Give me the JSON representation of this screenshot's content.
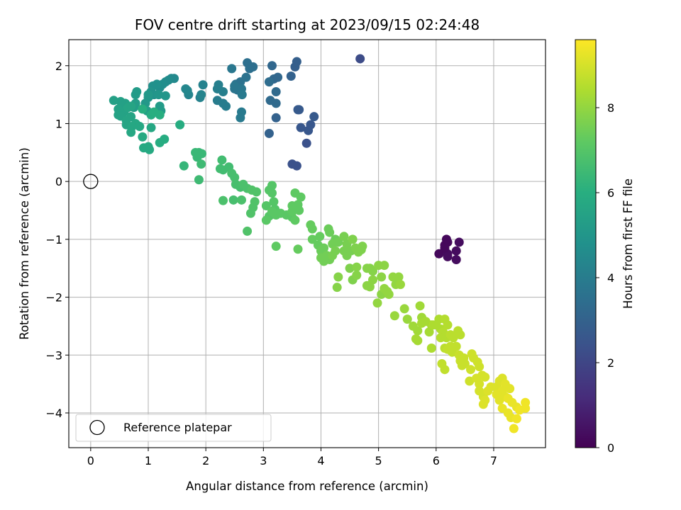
{
  "chart_data": {
    "type": "scatter",
    "title": "FOV centre drift starting at 2023/09/15 02:24:48",
    "xlabel": "Angular distance from reference (arcmin)",
    "ylabel": "Rotation from reference (arcmin)",
    "xlim": [
      -0.38,
      7.9
    ],
    "ylim": [
      -4.6,
      2.45
    ],
    "xticks": [
      0,
      1,
      2,
      3,
      4,
      5,
      6,
      7
    ],
    "xtick_labels": [
      "0",
      "1",
      "2",
      "3",
      "4",
      "5",
      "6",
      "7"
    ],
    "yticks": [
      -4,
      -3,
      -2,
      -1,
      0,
      1,
      2
    ],
    "ytick_labels": [
      "−4",
      "−3",
      "−2",
      "−1",
      "0",
      "1",
      "2"
    ],
    "grid": true,
    "legend": {
      "position": "lower-left",
      "entries": [
        "Reference platepar"
      ]
    },
    "reference_point": {
      "x": 0,
      "y": 0,
      "label": "Reference platepar"
    },
    "colorbar": {
      "label": "Hours from first FF file",
      "colormap": "viridis",
      "range": [
        0,
        9.6
      ],
      "ticks": [
        0,
        2,
        4,
        6,
        8
      ],
      "tick_labels": [
        "0",
        "2",
        "4",
        "6",
        "8"
      ]
    },
    "points": [
      [
        6.2,
        -1.05,
        0.2
      ],
      [
        6.15,
        -1.1,
        0.2
      ],
      [
        6.18,
        -1.0,
        0.2
      ],
      [
        6.05,
        -1.25,
        0.2
      ],
      [
        6.2,
        -1.25,
        0.3
      ],
      [
        6.4,
        -1.05,
        0.3
      ],
      [
        6.35,
        -1.2,
        0.3
      ],
      [
        6.35,
        -1.35,
        0.3
      ],
      [
        6.2,
        -1.3,
        0.3
      ],
      [
        6.15,
        -1.15,
        0.2
      ],
      [
        4.68,
        2.12,
        2.2
      ],
      [
        3.5,
        0.3,
        2.4
      ],
      [
        3.58,
        0.27,
        2.4
      ],
      [
        3.75,
        0.66,
        2.4
      ],
      [
        3.65,
        0.93,
        2.6
      ],
      [
        3.78,
        0.88,
        2.6
      ],
      [
        3.82,
        0.98,
        2.6
      ],
      [
        3.88,
        1.12,
        2.7
      ],
      [
        3.6,
        1.24,
        2.7
      ],
      [
        3.62,
        1.24,
        2.7
      ],
      [
        3.1,
        0.83,
        3.0
      ],
      [
        3.22,
        1.1,
        3.0
      ],
      [
        3.55,
        1.98,
        2.9
      ],
      [
        3.58,
        2.07,
        2.9
      ],
      [
        3.48,
        1.82,
        3.0
      ],
      [
        3.15,
        2.0,
        3.2
      ],
      [
        3.18,
        1.77,
        3.2
      ],
      [
        3.25,
        1.8,
        3.2
      ],
      [
        3.12,
        1.4,
        3.3
      ],
      [
        3.22,
        1.35,
        3.3
      ],
      [
        3.22,
        1.55,
        3.3
      ],
      [
        3.1,
        1.72,
        3.4
      ],
      [
        2.72,
        2.05,
        3.5
      ],
      [
        2.76,
        1.95,
        3.5
      ],
      [
        2.82,
        1.98,
        3.5
      ],
      [
        2.7,
        1.8,
        3.6
      ],
      [
        2.6,
        1.72,
        3.6
      ],
      [
        2.52,
        1.68,
        3.6
      ],
      [
        2.55,
        1.58,
        3.6
      ],
      [
        2.5,
        1.6,
        3.7
      ],
      [
        2.6,
        1.6,
        3.7
      ],
      [
        2.45,
        1.95,
        3.8
      ],
      [
        2.5,
        1.65,
        3.8
      ],
      [
        2.62,
        1.6,
        3.8
      ],
      [
        2.63,
        1.5,
        3.9
      ],
      [
        2.62,
        1.2,
        3.9
      ],
      [
        2.6,
        1.1,
        3.9
      ],
      [
        2.35,
        1.3,
        4.0
      ],
      [
        2.3,
        1.35,
        4.0
      ],
      [
        2.2,
        1.4,
        4.0
      ],
      [
        2.2,
        1.6,
        4.1
      ],
      [
        2.22,
        1.67,
        4.1
      ],
      [
        2.3,
        1.55,
        4.1
      ],
      [
        1.95,
        1.67,
        4.2
      ],
      [
        1.9,
        1.45,
        4.2
      ],
      [
        1.92,
        1.5,
        4.3
      ],
      [
        1.7,
        1.5,
        4.3
      ],
      [
        1.65,
        1.6,
        4.4
      ],
      [
        1.68,
        1.57,
        4.4
      ],
      [
        1.4,
        1.78,
        4.5
      ],
      [
        1.45,
        1.78,
        4.5
      ],
      [
        1.35,
        1.75,
        4.6
      ],
      [
        1.3,
        1.72,
        4.6
      ],
      [
        1.2,
        1.62,
        4.7
      ],
      [
        1.25,
        1.68,
        4.7
      ],
      [
        1.15,
        1.68,
        4.8
      ],
      [
        1.08,
        1.65,
        4.8
      ],
      [
        1.05,
        1.55,
        4.9
      ],
      [
        1.1,
        1.5,
        4.9
      ],
      [
        1.3,
        1.48,
        5.0
      ],
      [
        1.18,
        1.5,
        5.0
      ],
      [
        1.0,
        1.45,
        5.0
      ],
      [
        0.95,
        1.35,
        5.1
      ],
      [
        1.0,
        1.5,
        5.1
      ],
      [
        0.8,
        1.55,
        5.2
      ],
      [
        0.78,
        1.5,
        5.2
      ],
      [
        1.2,
        1.3,
        5.2
      ],
      [
        1.22,
        1.22,
        5.2
      ],
      [
        0.98,
        1.22,
        5.3
      ],
      [
        0.78,
        1.35,
        5.3
      ],
      [
        0.75,
        1.28,
        5.3
      ],
      [
        0.6,
        1.35,
        5.4
      ],
      [
        0.55,
        1.33,
        5.4
      ],
      [
        0.52,
        1.38,
        5.4
      ],
      [
        0.4,
        1.4,
        5.4
      ],
      [
        0.48,
        1.25,
        5.5
      ],
      [
        0.58,
        1.2,
        5.5
      ],
      [
        0.48,
        1.15,
        5.5
      ],
      [
        0.52,
        1.13,
        5.5
      ],
      [
        0.62,
        1.05,
        5.6
      ],
      [
        0.65,
        1.28,
        5.6
      ],
      [
        0.7,
        1.3,
        5.6
      ],
      [
        0.7,
        1.12,
        5.6
      ],
      [
        0.62,
        0.98,
        5.6
      ],
      [
        0.72,
        0.95,
        5.7
      ],
      [
        0.78,
        1.0,
        5.7
      ],
      [
        0.7,
        0.85,
        5.7
      ],
      [
        0.85,
        0.95,
        5.7
      ],
      [
        1.05,
        0.93,
        5.7
      ],
      [
        0.9,
        0.77,
        5.8
      ],
      [
        0.92,
        0.58,
        5.8
      ],
      [
        1.02,
        0.55,
        5.8
      ],
      [
        1.0,
        0.6,
        5.8
      ],
      [
        1.2,
        0.67,
        5.9
      ],
      [
        1.28,
        0.73,
        5.9
      ],
      [
        1.55,
        0.98,
        5.9
      ],
      [
        1.05,
        1.15,
        5.9
      ],
      [
        1.1,
        1.2,
        6.0
      ],
      [
        1.2,
        1.15,
        6.0
      ],
      [
        0.9,
        1.25,
        6.0
      ],
      [
        1.62,
        0.27,
        6.3
      ],
      [
        1.88,
        0.5,
        6.4
      ],
      [
        1.82,
        0.5,
        6.4
      ],
      [
        1.85,
        0.42,
        6.4
      ],
      [
        1.93,
        0.48,
        6.4
      ],
      [
        1.92,
        0.3,
        6.5
      ],
      [
        1.88,
        0.03,
        6.5
      ],
      [
        2.25,
        0.22,
        6.6
      ],
      [
        2.3,
        0.2,
        6.6
      ],
      [
        2.28,
        0.37,
        6.6
      ],
      [
        2.4,
        0.25,
        6.6
      ],
      [
        2.45,
        0.14,
        6.7
      ],
      [
        2.5,
        0.07,
        6.7
      ],
      [
        2.52,
        -0.05,
        6.7
      ],
      [
        2.6,
        -0.1,
        6.7
      ],
      [
        2.48,
        -0.32,
        6.7
      ],
      [
        2.3,
        -0.33,
        6.8
      ],
      [
        2.62,
        -0.32,
        6.8
      ],
      [
        2.65,
        -0.05,
        6.8
      ],
      [
        2.72,
        -0.12,
        6.8
      ],
      [
        2.8,
        -0.15,
        6.9
      ],
      [
        2.85,
        -0.35,
        6.9
      ],
      [
        2.88,
        -0.18,
        6.9
      ],
      [
        2.82,
        -0.45,
        6.9
      ],
      [
        2.78,
        -0.55,
        6.9
      ],
      [
        2.72,
        -0.86,
        6.9
      ],
      [
        3.05,
        -0.42,
        7.0
      ],
      [
        3.1,
        -0.15,
        7.0
      ],
      [
        3.15,
        -0.2,
        7.0
      ],
      [
        3.15,
        -0.07,
        7.0
      ],
      [
        3.18,
        -0.35,
        7.0
      ],
      [
        3.2,
        -0.48,
        7.0
      ],
      [
        3.1,
        -0.6,
        7.0
      ],
      [
        3.05,
        -0.67,
        7.1
      ],
      [
        3.15,
        -0.52,
        7.1
      ],
      [
        3.22,
        -0.58,
        7.1
      ],
      [
        3.3,
        -0.55,
        7.1
      ],
      [
        3.4,
        -0.58,
        7.1
      ],
      [
        3.5,
        -0.62,
        7.1
      ],
      [
        3.5,
        -0.52,
        7.2
      ],
      [
        3.5,
        -0.42,
        7.2
      ],
      [
        3.55,
        -0.2,
        7.2
      ],
      [
        3.6,
        -0.4,
        7.2
      ],
      [
        3.65,
        -0.27,
        7.2
      ],
      [
        3.62,
        -0.5,
        7.2
      ],
      [
        3.55,
        -0.67,
        7.2
      ],
      [
        3.22,
        -1.12,
        7.2
      ],
      [
        3.6,
        -1.17,
        7.3
      ],
      [
        3.82,
        -0.75,
        7.3
      ],
      [
        3.85,
        -0.82,
        7.3
      ],
      [
        3.85,
        -1.0,
        7.3
      ],
      [
        3.95,
        -1.1,
        7.3
      ],
      [
        3.98,
        -0.95,
        7.3
      ],
      [
        4.0,
        -1.2,
        7.4
      ],
      [
        4.05,
        -1.15,
        7.4
      ],
      [
        4.15,
        -0.88,
        7.4
      ],
      [
        4.13,
        -0.82,
        7.4
      ],
      [
        4.25,
        -1.0,
        7.4
      ],
      [
        4.3,
        -1.05,
        7.5
      ],
      [
        4.2,
        -1.08,
        7.5
      ],
      [
        4.0,
        -1.32,
        7.5
      ],
      [
        4.05,
        -1.38,
        7.5
      ],
      [
        4.15,
        -1.35,
        7.5
      ],
      [
        4.1,
        -1.28,
        7.5
      ],
      [
        4.2,
        -1.28,
        7.6
      ],
      [
        4.25,
        -1.2,
        7.6
      ],
      [
        4.4,
        -0.95,
        7.6
      ],
      [
        4.45,
        -1.08,
        7.6
      ],
      [
        4.4,
        -1.2,
        7.6
      ],
      [
        4.45,
        -1.28,
        7.6
      ],
      [
        4.52,
        -1.2,
        7.6
      ],
      [
        4.55,
        -1.0,
        7.7
      ],
      [
        4.6,
        -1.15,
        7.7
      ],
      [
        4.65,
        -1.22,
        7.7
      ],
      [
        4.7,
        -1.18,
        7.7
      ],
      [
        4.72,
        -1.12,
        7.7
      ],
      [
        4.5,
        -1.5,
        7.7
      ],
      [
        4.55,
        -1.7,
        7.7
      ],
      [
        4.62,
        -1.48,
        7.8
      ],
      [
        4.62,
        -1.62,
        7.8
      ],
      [
        4.3,
        -1.65,
        7.8
      ],
      [
        4.28,
        -1.83,
        7.8
      ],
      [
        4.8,
        -1.5,
        7.8
      ],
      [
        4.85,
        -1.5,
        7.8
      ],
      [
        4.9,
        -1.55,
        7.8
      ],
      [
        4.9,
        -1.7,
        7.9
      ],
      [
        4.85,
        -1.82,
        7.9
      ],
      [
        4.8,
        -1.8,
        7.9
      ],
      [
        5.0,
        -1.45,
        7.9
      ],
      [
        5.05,
        -1.65,
        7.9
      ],
      [
        5.1,
        -1.45,
        7.9
      ],
      [
        5.05,
        -1.95,
        7.9
      ],
      [
        4.98,
        -2.1,
        8.0
      ],
      [
        5.1,
        -1.85,
        8.0
      ],
      [
        5.15,
        -1.9,
        8.0
      ],
      [
        5.18,
        -1.95,
        8.0
      ],
      [
        5.3,
        -1.78,
        8.0
      ],
      [
        5.25,
        -1.65,
        8.0
      ],
      [
        5.35,
        -1.65,
        8.0
      ],
      [
        5.38,
        -1.78,
        8.1
      ],
      [
        5.45,
        -2.2,
        8.1
      ],
      [
        5.28,
        -2.32,
        8.1
      ],
      [
        5.5,
        -2.38,
        8.1
      ],
      [
        5.6,
        -2.5,
        8.2
      ],
      [
        5.68,
        -2.58,
        8.2
      ],
      [
        5.72,
        -2.15,
        8.2
      ],
      [
        5.75,
        -2.35,
        8.2
      ],
      [
        5.65,
        -2.72,
        8.3
      ],
      [
        5.68,
        -2.75,
        8.3
      ],
      [
        5.75,
        -2.45,
        8.3
      ],
      [
        5.82,
        -2.42,
        8.3
      ],
      [
        5.88,
        -2.6,
        8.3
      ],
      [
        5.92,
        -2.48,
        8.3
      ],
      [
        5.95,
        -2.48,
        8.4
      ],
      [
        6.0,
        -2.48,
        8.4
      ],
      [
        6.05,
        -2.38,
        8.4
      ],
      [
        5.92,
        -2.88,
        8.4
      ],
      [
        6.08,
        -2.55,
        8.4
      ],
      [
        6.12,
        -2.6,
        8.5
      ],
      [
        6.08,
        -2.7,
        8.5
      ],
      [
        6.15,
        -2.38,
        8.5
      ],
      [
        6.2,
        -2.48,
        8.5
      ],
      [
        6.18,
        -2.7,
        8.5
      ],
      [
        6.25,
        -2.65,
        8.6
      ],
      [
        6.3,
        -2.7,
        8.6
      ],
      [
        6.38,
        -2.58,
        8.6
      ],
      [
        6.42,
        -2.65,
        8.6
      ],
      [
        6.15,
        -2.88,
        8.6
      ],
      [
        6.2,
        -2.9,
        8.7
      ],
      [
        6.25,
        -2.85,
        8.7
      ],
      [
        6.28,
        -2.95,
        8.7
      ],
      [
        6.35,
        -2.85,
        8.7
      ],
      [
        6.1,
        -3.15,
        8.7
      ],
      [
        6.15,
        -3.25,
        8.7
      ],
      [
        6.4,
        -3.0,
        8.8
      ],
      [
        6.42,
        -3.1,
        8.8
      ],
      [
        6.48,
        -3.05,
        8.8
      ],
      [
        6.5,
        -3.15,
        8.8
      ],
      [
        6.45,
        -3.18,
        8.8
      ],
      [
        6.62,
        -2.98,
        8.9
      ],
      [
        6.65,
        -3.05,
        8.9
      ],
      [
        6.72,
        -3.12,
        8.9
      ],
      [
        6.75,
        -3.2,
        8.9
      ],
      [
        6.6,
        -3.25,
        8.9
      ],
      [
        6.58,
        -3.45,
        8.9
      ],
      [
        6.7,
        -3.4,
        9.0
      ],
      [
        6.75,
        -3.5,
        9.0
      ],
      [
        6.8,
        -3.35,
        9.0
      ],
      [
        6.85,
        -3.38,
        9.0
      ],
      [
        6.75,
        -3.62,
        9.0
      ],
      [
        6.82,
        -3.72,
        9.0
      ],
      [
        6.9,
        -3.62,
        9.1
      ],
      [
        6.85,
        -3.78,
        9.1
      ],
      [
        6.95,
        -3.55,
        9.1
      ],
      [
        7.05,
        -3.55,
        9.1
      ],
      [
        7.1,
        -3.45,
        9.1
      ],
      [
        7.15,
        -3.4,
        9.1
      ],
      [
        7.2,
        -3.5,
        9.2
      ],
      [
        7.15,
        -3.62,
        9.2
      ],
      [
        7.05,
        -3.68,
        9.2
      ],
      [
        7.1,
        -3.78,
        9.2
      ],
      [
        7.2,
        -3.72,
        9.2
      ],
      [
        7.28,
        -3.58,
        9.2
      ],
      [
        7.25,
        -3.75,
        9.3
      ],
      [
        7.32,
        -3.82,
        9.3
      ],
      [
        7.15,
        -3.92,
        9.3
      ],
      [
        7.25,
        -4.0,
        9.3
      ],
      [
        7.3,
        -4.08,
        9.3
      ],
      [
        7.4,
        -3.9,
        9.3
      ],
      [
        7.45,
        -3.95,
        9.4
      ],
      [
        7.55,
        -3.82,
        9.4
      ],
      [
        7.55,
        -3.92,
        9.4
      ],
      [
        7.4,
        -4.1,
        9.4
      ],
      [
        7.35,
        -4.27,
        9.4
      ],
      [
        6.82,
        -3.85,
        9.1
      ]
    ]
  }
}
